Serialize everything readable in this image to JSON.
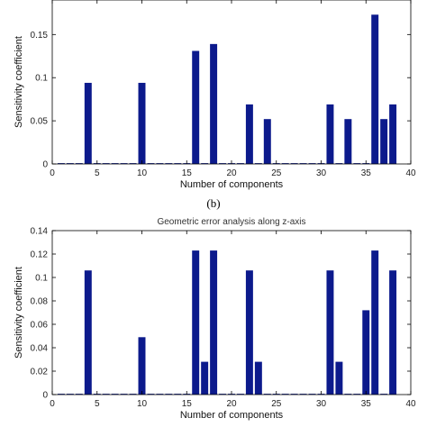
{
  "panel_label": "(b)",
  "chart_data": [
    {
      "type": "bar",
      "title": "",
      "xlabel": "Number of components",
      "ylabel": "Sensitivity coefficient",
      "xlim": [
        0,
        40
      ],
      "ylim": [
        0,
        0.19
      ],
      "xticks": [
        0,
        5,
        10,
        15,
        20,
        25,
        30,
        35,
        40
      ],
      "yticks": [
        0,
        0.05,
        0.1,
        0.15
      ],
      "ytick_labels": [
        "0",
        "0.05",
        "0.1",
        "0.15"
      ],
      "grid": false,
      "color": "#0c1a8c",
      "x": [
        1,
        2,
        3,
        4,
        5,
        6,
        7,
        8,
        9,
        10,
        11,
        12,
        13,
        14,
        15,
        16,
        17,
        18,
        19,
        20,
        21,
        22,
        23,
        24,
        25,
        26,
        27,
        28,
        29,
        30,
        31,
        32,
        33,
        34,
        35,
        36,
        37,
        38
      ],
      "values": [
        0,
        0,
        0,
        0.094,
        0,
        0,
        0,
        0,
        0,
        0.094,
        0,
        0,
        0,
        0,
        0,
        0.131,
        0,
        0.139,
        0,
        0,
        0,
        0.069,
        0,
        0.052,
        0,
        0,
        0,
        0,
        0,
        0,
        0.069,
        0,
        0.052,
        0,
        0,
        0.173,
        0.052,
        0.069
      ]
    },
    {
      "type": "bar",
      "title": "Geometric error analysis along z-axis",
      "xlabel": "Number of components",
      "ylabel": "Sensitivity coefficient",
      "xlim": [
        0,
        40
      ],
      "ylim": [
        0,
        0.14
      ],
      "xticks": [
        0,
        5,
        10,
        15,
        20,
        25,
        30,
        35,
        40
      ],
      "yticks": [
        0,
        0.02,
        0.04,
        0.06,
        0.08,
        0.1,
        0.12,
        0.14
      ],
      "ytick_labels": [
        "0",
        "0.02",
        "0.04",
        "0.06",
        "0.08",
        "0.1",
        "0.12",
        "0.14"
      ],
      "grid": false,
      "color": "#0c1a8c",
      "x": [
        1,
        2,
        3,
        4,
        5,
        6,
        7,
        8,
        9,
        10,
        11,
        12,
        13,
        14,
        15,
        16,
        17,
        18,
        19,
        20,
        21,
        22,
        23,
        24,
        25,
        26,
        27,
        28,
        29,
        30,
        31,
        32,
        33,
        34,
        35,
        36,
        37,
        38
      ],
      "values": [
        0,
        0,
        0,
        0.106,
        0,
        0,
        0,
        0,
        0,
        0.049,
        0,
        0,
        0,
        0,
        0,
        0.123,
        0.028,
        0.123,
        0,
        0,
        0,
        0.106,
        0.028,
        0,
        0,
        0,
        0,
        0,
        0,
        0,
        0.106,
        0.028,
        0,
        0,
        0.072,
        0.123,
        0,
        0.106
      ]
    }
  ]
}
